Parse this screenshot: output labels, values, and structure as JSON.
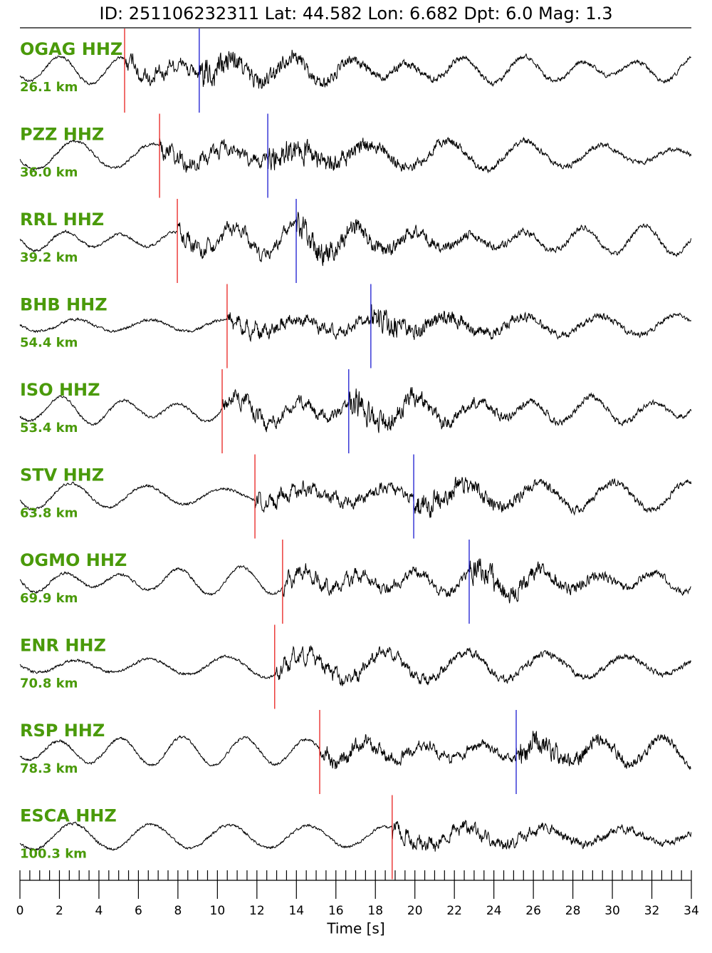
{
  "chart_data": {
    "type": "seismogram",
    "title": "ID: 251106232311 Lat:  44.582 Lon:   6.682 Dpt:     6.0 Mag:   1.3",
    "xlabel": "Time [s]",
    "xlim": [
      0,
      34
    ],
    "xticks": [
      0,
      2,
      4,
      6,
      8,
      10,
      12,
      14,
      16,
      18,
      20,
      22,
      24,
      26,
      28,
      30,
      32,
      34
    ],
    "xminor": 0.5,
    "label_color": "#4a9a0a",
    "p_color": "#e8201e",
    "s_color": "#1a1ad0",
    "traces": [
      {
        "name": "OGAG HHZ",
        "distance": "26.1 km",
        "p": 5.3,
        "s": 9.08
      },
      {
        "name": "PZZ HHZ",
        "distance": "36.0 km",
        "p": 7.07,
        "s": 12.55
      },
      {
        "name": "RRL HHZ",
        "distance": "39.2 km",
        "p": 7.97,
        "s": 13.99
      },
      {
        "name": "BHB HHZ",
        "distance": "54.4 km",
        "p": 10.49,
        "s": 17.77
      },
      {
        "name": "ISO HHZ",
        "distance": "53.4 km",
        "p": 10.24,
        "s": 16.65
      },
      {
        "name": "STV HHZ",
        "distance": "63.8 km",
        "p": 11.9,
        "s": 19.94
      },
      {
        "name": "OGMO HHZ",
        "distance": "69.9 km",
        "p": 13.3,
        "s": 22.75
      },
      {
        "name": "ENR HHZ",
        "distance": "70.8 km",
        "p": 12.9,
        "s": null
      },
      {
        "name": "RSP HHZ",
        "distance": "78.3 km",
        "p": 15.18,
        "s": 25.13
      },
      {
        "name": "ESCA HHZ",
        "distance": "100.3 km",
        "p": 18.85,
        "s": null
      }
    ]
  }
}
